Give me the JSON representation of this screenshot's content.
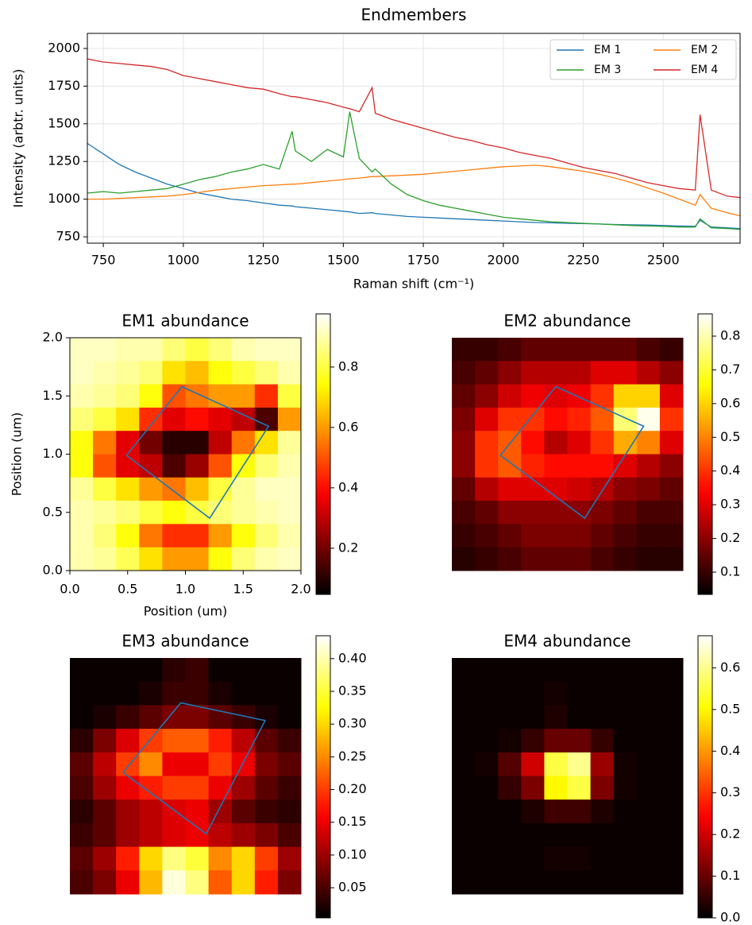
{
  "chart_data": [
    {
      "type": "line",
      "title": "Endmembers",
      "xlabel": "Raman shift (cm⁻¹)",
      "ylabel": "Intensity (arbtr. units)",
      "x": [
        700,
        750,
        800,
        850,
        900,
        950,
        1000,
        1050,
        1100,
        1150,
        1200,
        1250,
        1300,
        1340,
        1350,
        1400,
        1450,
        1500,
        1520,
        1550,
        1590,
        1600,
        1650,
        1700,
        1750,
        1800,
        1850,
        1900,
        1950,
        2000,
        2050,
        2100,
        2150,
        2200,
        2250,
        2300,
        2350,
        2400,
        2450,
        2500,
        2550,
        2600,
        2615,
        2650,
        2700,
        2740
      ],
      "series": [
        {
          "name": "EM 1",
          "color": "#1f77b4",
          "values": [
            1370,
            1300,
            1230,
            1180,
            1140,
            1100,
            1070,
            1040,
            1020,
            1000,
            990,
            975,
            960,
            955,
            950,
            940,
            930,
            920,
            915,
            905,
            910,
            905,
            895,
            885,
            880,
            875,
            870,
            865,
            860,
            855,
            850,
            845,
            843,
            840,
            838,
            835,
            832,
            830,
            828,
            825,
            822,
            820,
            860,
            815,
            810,
            805
          ]
        },
        {
          "name": "EM 2",
          "color": "#ff7f0e",
          "values": [
            1000,
            1000,
            1005,
            1010,
            1015,
            1020,
            1030,
            1045,
            1060,
            1070,
            1080,
            1090,
            1095,
            1100,
            1100,
            1110,
            1120,
            1130,
            1135,
            1140,
            1150,
            1150,
            1155,
            1160,
            1165,
            1175,
            1185,
            1195,
            1205,
            1215,
            1220,
            1225,
            1215,
            1200,
            1185,
            1165,
            1140,
            1110,
            1075,
            1040,
            1000,
            960,
            1030,
            940,
            910,
            890
          ]
        },
        {
          "name": "EM 3",
          "color": "#2ca02c",
          "values": [
            1040,
            1050,
            1040,
            1050,
            1060,
            1070,
            1100,
            1130,
            1150,
            1180,
            1200,
            1230,
            1200,
            1450,
            1320,
            1250,
            1330,
            1280,
            1580,
            1270,
            1180,
            1200,
            1100,
            1030,
            990,
            960,
            940,
            920,
            900,
            880,
            870,
            860,
            850,
            845,
            840,
            835,
            830,
            825,
            822,
            820,
            815,
            815,
            870,
            810,
            805,
            800
          ]
        },
        {
          "name": "EM 4",
          "color": "#d62728",
          "values": [
            1930,
            1910,
            1900,
            1890,
            1880,
            1860,
            1820,
            1800,
            1780,
            1760,
            1740,
            1730,
            1700,
            1680,
            1680,
            1660,
            1640,
            1610,
            1600,
            1580,
            1740,
            1570,
            1530,
            1500,
            1470,
            1440,
            1410,
            1390,
            1360,
            1340,
            1310,
            1290,
            1270,
            1240,
            1210,
            1190,
            1170,
            1140,
            1110,
            1090,
            1070,
            1060,
            1560,
            1060,
            1020,
            1010
          ]
        }
      ],
      "xlim": [
        700,
        2740
      ],
      "ylim": [
        708,
        2100
      ],
      "xticks": [
        750,
        1000,
        1250,
        1500,
        1750,
        2000,
        2250,
        2500
      ],
      "yticks": [
        750,
        1000,
        1250,
        1500,
        1750,
        2000
      ],
      "grid": true,
      "legend": "upper right"
    },
    {
      "type": "heatmap",
      "title": "EM1 abundance",
      "xlabel": "Position (um)",
      "ylabel": "Position (um)",
      "cmap": "hot",
      "xlim": [
        0,
        2
      ],
      "ylim": [
        0,
        2
      ],
      "xticks": [
        {
          "value": 0,
          "label": "0.0"
        },
        {
          "value": 0.5,
          "label": "0.5"
        },
        {
          "value": 1,
          "label": "1.0"
        },
        {
          "value": 1.5,
          "label": "1.5"
        },
        {
          "value": 2,
          "label": "2.0"
        }
      ],
      "yticks": [
        {
          "value": 0,
          "label": "0.0"
        },
        {
          "value": 0.5,
          "label": "0.5"
        },
        {
          "value": 1,
          "label": "1.0"
        },
        {
          "value": 1.5,
          "label": "1.5"
        },
        {
          "value": 2,
          "label": "2.0"
        }
      ],
      "values": [
        [
          0.92,
          0.92,
          0.9,
          0.9,
          0.85,
          0.8,
          0.85,
          0.9,
          0.92,
          0.92
        ],
        [
          0.92,
          0.9,
          0.88,
          0.85,
          0.7,
          0.65,
          0.75,
          0.8,
          0.85,
          0.9
        ],
        [
          0.9,
          0.88,
          0.85,
          0.75,
          0.5,
          0.55,
          0.6,
          0.6,
          0.45,
          0.8
        ],
        [
          0.85,
          0.8,
          0.7,
          0.45,
          0.35,
          0.4,
          0.35,
          0.3,
          0.15,
          0.6
        ],
        [
          0.75,
          0.55,
          0.35,
          0.2,
          0.1,
          0.1,
          0.3,
          0.55,
          0.7,
          0.88
        ],
        [
          0.75,
          0.5,
          0.35,
          0.3,
          0.15,
          0.25,
          0.5,
          0.75,
          0.85,
          0.9
        ],
        [
          0.88,
          0.8,
          0.7,
          0.6,
          0.55,
          0.65,
          0.8,
          0.88,
          0.92,
          0.92
        ],
        [
          0.9,
          0.88,
          0.85,
          0.8,
          0.75,
          0.8,
          0.85,
          0.88,
          0.9,
          0.92
        ],
        [
          0.9,
          0.85,
          0.75,
          0.55,
          0.45,
          0.45,
          0.6,
          0.75,
          0.85,
          0.9
        ],
        [
          0.9,
          0.88,
          0.82,
          0.7,
          0.6,
          0.6,
          0.75,
          0.85,
          0.9,
          0.92
        ]
      ],
      "colorbar": {
        "lim": [
          0.047,
          0.976
        ],
        "ticks": [
          0.2,
          0.4,
          0.6,
          0.8
        ]
      },
      "roi": {
        "color": "#1f77b4",
        "x": [
          0.49,
          0.97,
          1.72,
          1.21,
          0.49
        ],
        "y": [
          0.99,
          1.58,
          1.24,
          0.45,
          0.99
        ]
      }
    },
    {
      "type": "heatmap",
      "title": "EM2 abundance",
      "cmap": "hot",
      "xlim": [
        0,
        2
      ],
      "ylim": [
        0,
        2
      ],
      "values": [
        [
          0.1,
          0.1,
          0.12,
          0.15,
          0.15,
          0.15,
          0.15,
          0.15,
          0.12,
          0.1
        ],
        [
          0.12,
          0.15,
          0.2,
          0.25,
          0.25,
          0.25,
          0.3,
          0.3,
          0.25,
          0.2
        ],
        [
          0.15,
          0.2,
          0.28,
          0.32,
          0.3,
          0.32,
          0.4,
          0.6,
          0.6,
          0.3
        ],
        [
          0.18,
          0.3,
          0.4,
          0.4,
          0.35,
          0.38,
          0.45,
          0.75,
          0.85,
          0.4
        ],
        [
          0.2,
          0.4,
          0.45,
          0.35,
          0.25,
          0.3,
          0.4,
          0.55,
          0.5,
          0.3
        ],
        [
          0.2,
          0.4,
          0.45,
          0.38,
          0.35,
          0.35,
          0.35,
          0.3,
          0.25,
          0.2
        ],
        [
          0.15,
          0.25,
          0.3,
          0.3,
          0.3,
          0.28,
          0.25,
          0.2,
          0.18,
          0.15
        ],
        [
          0.12,
          0.15,
          0.2,
          0.2,
          0.2,
          0.2,
          0.18,
          0.15,
          0.12,
          0.12
        ],
        [
          0.1,
          0.12,
          0.15,
          0.18,
          0.18,
          0.18,
          0.15,
          0.12,
          0.1,
          0.1
        ],
        [
          0.08,
          0.1,
          0.12,
          0.15,
          0.15,
          0.15,
          0.12,
          0.1,
          0.08,
          0.08
        ]
      ],
      "colorbar": {
        "lim": [
          0.034,
          0.866
        ],
        "ticks": [
          0.1,
          0.2,
          0.3,
          0.4,
          0.5,
          0.6,
          0.7,
          0.8
        ]
      },
      "roi": {
        "color": "#1f77b4",
        "x": [
          0.42,
          0.9,
          1.66,
          1.15,
          0.42
        ],
        "y": [
          0.99,
          1.58,
          1.24,
          0.45,
          0.99
        ]
      }
    },
    {
      "type": "heatmap",
      "title": "EM3 abundance",
      "cmap": "hot",
      "xlim": [
        0,
        2
      ],
      "ylim": [
        0,
        2
      ],
      "values": [
        [
          0.01,
          0.01,
          0.01,
          0.01,
          0.03,
          0.04,
          0.01,
          0.01,
          0.01,
          0.01
        ],
        [
          0.01,
          0.01,
          0.01,
          0.02,
          0.04,
          0.04,
          0.02,
          0.01,
          0.01,
          0.01
        ],
        [
          0.01,
          0.02,
          0.04,
          0.06,
          0.08,
          0.08,
          0.06,
          0.04,
          0.02,
          0.01
        ],
        [
          0.03,
          0.08,
          0.14,
          0.2,
          0.22,
          0.22,
          0.18,
          0.12,
          0.06,
          0.04
        ],
        [
          0.06,
          0.12,
          0.2,
          0.25,
          0.15,
          0.15,
          0.2,
          0.15,
          0.08,
          0.06
        ],
        [
          0.05,
          0.1,
          0.15,
          0.18,
          0.2,
          0.2,
          0.15,
          0.1,
          0.06,
          0.04
        ],
        [
          0.03,
          0.06,
          0.1,
          0.12,
          0.14,
          0.15,
          0.1,
          0.06,
          0.04,
          0.03
        ],
        [
          0.04,
          0.06,
          0.1,
          0.12,
          0.14,
          0.15,
          0.12,
          0.1,
          0.08,
          0.05
        ],
        [
          0.06,
          0.1,
          0.18,
          0.3,
          0.38,
          0.35,
          0.25,
          0.3,
          0.2,
          0.1
        ],
        [
          0.05,
          0.08,
          0.15,
          0.28,
          0.42,
          0.38,
          0.22,
          0.3,
          0.18,
          0.08
        ]
      ],
      "colorbar": {
        "lim": [
          0.004,
          0.435
        ],
        "ticks": [
          0.05,
          {
            "value": 0.1,
            "label": "0.10"
          },
          0.15,
          {
            "value": 0.2,
            "label": "0.20"
          },
          0.25,
          {
            "value": 0.3,
            "label": "0.30"
          },
          0.35,
          {
            "value": 0.4,
            "label": "0.40"
          }
        ]
      },
      "roi": {
        "color": "#1f77b4",
        "x": [
          0.46,
          0.96,
          1.69,
          1.18,
          0.46
        ],
        "y": [
          1.03,
          1.62,
          1.47,
          0.51,
          1.03
        ]
      }
    },
    {
      "type": "heatmap",
      "title": "EM4 abundance",
      "cmap": "hot",
      "xlim": [
        0,
        2
      ],
      "ylim": [
        0,
        2
      ],
      "values": [
        [
          0.01,
          0.01,
          0.01,
          0.01,
          0.01,
          0.01,
          0.01,
          0.01,
          0.01,
          0.01
        ],
        [
          0.01,
          0.01,
          0.01,
          0.01,
          0.02,
          0.01,
          0.01,
          0.01,
          0.01,
          0.01
        ],
        [
          0.01,
          0.01,
          0.01,
          0.01,
          0.03,
          0.01,
          0.01,
          0.01,
          0.01,
          0.01
        ],
        [
          0.01,
          0.01,
          0.02,
          0.05,
          0.1,
          0.1,
          0.05,
          0.01,
          0.01,
          0.01
        ],
        [
          0.01,
          0.02,
          0.08,
          0.2,
          0.55,
          0.6,
          0.15,
          0.02,
          0.01,
          0.01
        ],
        [
          0.01,
          0.01,
          0.05,
          0.12,
          0.5,
          0.55,
          0.12,
          0.02,
          0.01,
          0.01
        ],
        [
          0.01,
          0.01,
          0.01,
          0.03,
          0.06,
          0.06,
          0.03,
          0.01,
          0.01,
          0.01
        ],
        [
          0.01,
          0.01,
          0.01,
          0.01,
          0.01,
          0.01,
          0.01,
          0.01,
          0.01,
          0.01
        ],
        [
          0.01,
          0.01,
          0.01,
          0.01,
          0.02,
          0.02,
          0.01,
          0.01,
          0.01,
          0.01
        ],
        [
          0.01,
          0.01,
          0.01,
          0.01,
          0.01,
          0.01,
          0.01,
          0.01,
          0.01,
          0.01
        ]
      ],
      "colorbar": {
        "lim": [
          0,
          0.677
        ],
        "ticks": [
          {
            "value": 0,
            "label": "0.0"
          },
          0.1,
          0.2,
          0.3,
          0.4,
          0.5,
          0.6
        ]
      }
    }
  ]
}
